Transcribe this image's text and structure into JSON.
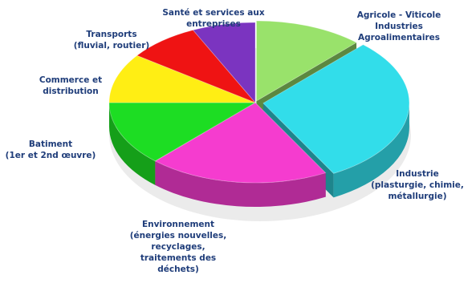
{
  "chart_data": {
    "type": "pie",
    "style": "3d-exploded",
    "slices": [
      {
        "key": "agricole",
        "label": [
          "Agricole - Viticole",
          "Industries",
          "Agroalimentaires"
        ],
        "value": 12,
        "color": "#99e26b"
      },
      {
        "key": "industrie",
        "label": [
          "Industrie",
          "(plasturgie, chimie,",
          "métallurgie)"
        ],
        "value": 30,
        "color": "#32ddea"
      },
      {
        "key": "environnement",
        "label": [
          "Environnement",
          "(énergies nouvelles,",
          "recyclages,",
          "traitements des",
          "déchets)"
        ],
        "value": 20,
        "color": "#f53ccf"
      },
      {
        "key": "batiment",
        "label": [
          "Batiment",
          "(1er et 2nd œuvre)"
        ],
        "value": 13,
        "color": "#1ddd23"
      },
      {
        "key": "commerce",
        "label": [
          "Commerce et",
          "distribution"
        ],
        "value": 10,
        "color": "#ffee14"
      },
      {
        "key": "transports",
        "label": [
          "Transports",
          "(fluvial, routier)"
        ],
        "value": 8,
        "color": "#ef1313"
      },
      {
        "key": "sante",
        "label": [
          "Santé et services aux",
          "entreprises"
        ],
        "value": 7,
        "color": "#7b34c0"
      }
    ]
  }
}
